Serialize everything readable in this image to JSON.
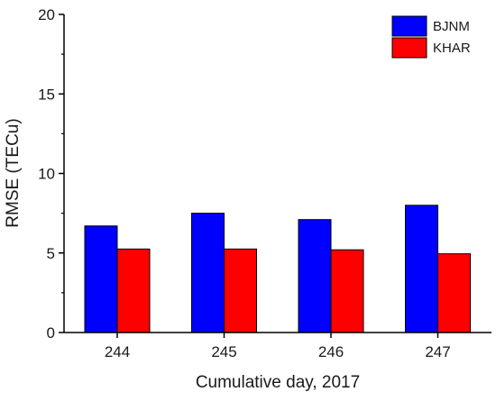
{
  "chart_data": {
    "type": "bar",
    "title": "",
    "xlabel": "Cumulative day, 2017",
    "ylabel": "RMSE (TECu)",
    "ylim": [
      0,
      20
    ],
    "yticks": [
      "0",
      "5",
      "10",
      "15",
      "20"
    ],
    "categories": [
      "244",
      "245",
      "246",
      "247"
    ],
    "series": [
      {
        "name": "BJNM",
        "color": "#0000ff",
        "values": [
          6.7,
          7.5,
          7.1,
          8.0
        ]
      },
      {
        "name": "KHAR",
        "color": "#ff0000",
        "values": [
          5.25,
          5.25,
          5.2,
          4.95
        ]
      }
    ],
    "legend_position": "top-right",
    "grid": false
  }
}
